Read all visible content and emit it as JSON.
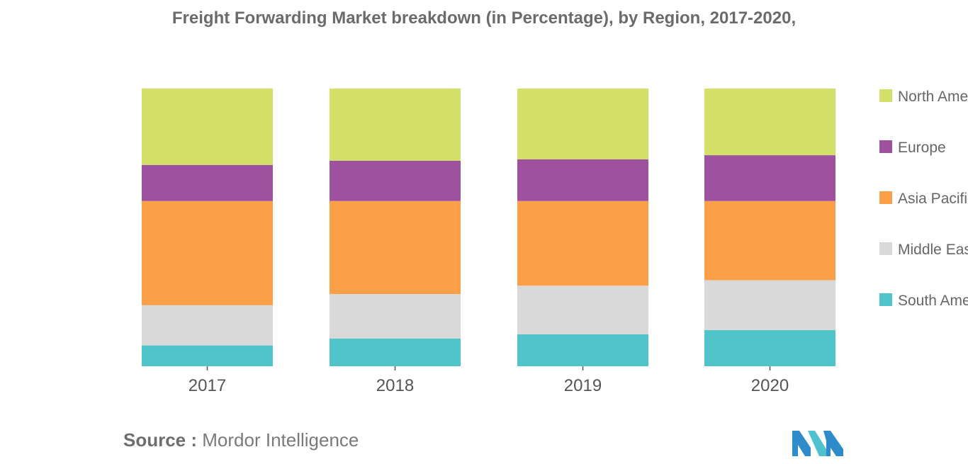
{
  "chart_data": {
    "type": "bar",
    "stacked": true,
    "normalized": true,
    "title": "Freight Forwarding Market breakdown (in Percentage), by Region, 2017-2020,",
    "xlabel": "",
    "ylabel": "",
    "ylim": [
      0,
      100
    ],
    "categories": [
      "2017",
      "2018",
      "2019",
      "2020"
    ],
    "series": [
      {
        "name": "South America",
        "color": "#50c4c9",
        "values": [
          7.5,
          10,
          11.5,
          13
        ]
      },
      {
        "name": "Middle East",
        "color": "#d9d9d9",
        "values": [
          14.5,
          16,
          17.5,
          18
        ]
      },
      {
        "name": "Asia Pacific",
        "color": "#fb9f48",
        "values": [
          37.5,
          33.5,
          30.5,
          28.5
        ]
      },
      {
        "name": "Europe",
        "color": "#9d519e",
        "values": [
          13,
          14.5,
          15,
          16.5
        ]
      },
      {
        "name": "North America",
        "color": "#d2e06a",
        "values": [
          27.5,
          26,
          25.5,
          24
        ]
      }
    ],
    "legend": {
      "position": "right",
      "entries": [
        "North America",
        "Europe",
        "Asia Pacific",
        "Middle East",
        "South America"
      ]
    },
    "grid": false
  },
  "source": {
    "label": "Source :",
    "text": "Mordor Intelligence"
  },
  "logo": {
    "colors": [
      "#2f8bc9",
      "#4fc2cf"
    ]
  }
}
